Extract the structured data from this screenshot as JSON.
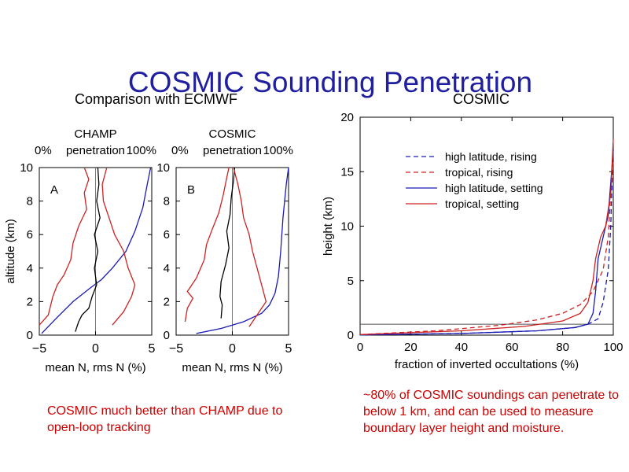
{
  "slide": {
    "title": "COSMIC Sounding Penetration",
    "subtitle_left": "Comparison with ECMWF",
    "subtitle_right": "COSMIC",
    "note_left": "COSMIC much better than CHAMP due to open-loop tracking",
    "note_right": "~80% of COSMIC soundings can penetrate to below 1 km, and can be used to measure boundary layer height and moisture."
  },
  "colors": {
    "title": "#1f1fa0",
    "blue": "#1a1ab4",
    "red": "#cc2222",
    "black": "#000000",
    "note": "#cc0000"
  },
  "chart_data": [
    {
      "type": "line",
      "panel_label": "A",
      "header": "CHAMP",
      "penetration_label": "penetration",
      "pct_left": "0%",
      "pct_right": "100%",
      "xlabel": "mean N, rms N (%)",
      "ylabel": "altitude (km)",
      "xlim": [
        -5,
        5
      ],
      "ylim": [
        0,
        10
      ],
      "xticks": [
        -5,
        0,
        5
      ],
      "xtick_labels": [
        "−5",
        "0",
        "5"
      ],
      "yticks": [
        0,
        2,
        4,
        6,
        8,
        10
      ],
      "series": [
        {
          "name": "penetration",
          "color": "blue",
          "points": [
            [
              -4.8,
              0.1
            ],
            [
              -3.5,
              1.0
            ],
            [
              -2,
              2.0
            ],
            [
              -0.5,
              2.8
            ],
            [
              0.5,
              3.3
            ],
            [
              1.5,
              4.0
            ],
            [
              2.7,
              5.0
            ],
            [
              3.5,
              6.2
            ],
            [
              4.2,
              7.6
            ],
            [
              4.6,
              9.0
            ],
            [
              4.9,
              10
            ]
          ]
        },
        {
          "name": "mean N",
          "color": "black",
          "points": [
            [
              -1.8,
              0.2
            ],
            [
              -1.5,
              0.8
            ],
            [
              -1.2,
              1.2
            ],
            [
              -0.6,
              1.6
            ],
            [
              -0.3,
              2.3
            ],
            [
              0.1,
              3.0
            ],
            [
              -0.1,
              4.0
            ],
            [
              0.2,
              5.0
            ],
            [
              -0.1,
              6.0
            ],
            [
              0.4,
              7.0
            ],
            [
              0.1,
              8.0
            ],
            [
              0.3,
              9.0
            ],
            [
              0.2,
              10
            ]
          ]
        },
        {
          "name": "rms N left",
          "color": "red",
          "points": [
            [
              -5,
              0.6
            ],
            [
              -4.2,
              1.2
            ],
            [
              -3.8,
              2.3
            ],
            [
              -3.4,
              3.0
            ],
            [
              -2.8,
              3.6
            ],
            [
              -2.2,
              4.5
            ],
            [
              -2.0,
              5.5
            ],
            [
              -1.5,
              6.5
            ],
            [
              -0.8,
              7.5
            ],
            [
              -1.0,
              8.5
            ],
            [
              -0.6,
              9.3
            ],
            [
              -1.0,
              10
            ]
          ]
        },
        {
          "name": "rms N right",
          "color": "red",
          "points": [
            [
              1.5,
              0.6
            ],
            [
              2.5,
              1.4
            ],
            [
              3.2,
              2.3
            ],
            [
              3.5,
              3.0
            ],
            [
              2.9,
              4.0
            ],
            [
              2.5,
              5.0
            ],
            [
              1.7,
              6.0
            ],
            [
              1.2,
              7.0
            ],
            [
              0.7,
              8.0
            ],
            [
              0.6,
              9.0
            ],
            [
              1.0,
              10
            ]
          ]
        }
      ]
    },
    {
      "type": "line",
      "panel_label": "B",
      "header": "COSMIC",
      "penetration_label": "penetration",
      "pct_left": "0%",
      "pct_right": "100%",
      "xlabel": "mean N, rms N (%)",
      "ylabel": "",
      "xlim": [
        -5,
        5
      ],
      "ylim": [
        0,
        10
      ],
      "xticks": [
        -5,
        0,
        5
      ],
      "xtick_labels": [
        "−5",
        "0",
        "5"
      ],
      "yticks": [
        0,
        2,
        4,
        6,
        8,
        10
      ],
      "series": [
        {
          "name": "penetration",
          "color": "blue",
          "points": [
            [
              -3.2,
              0.1
            ],
            [
              -1,
              0.4
            ],
            [
              1,
              0.8
            ],
            [
              2.6,
              1.3
            ],
            [
              3.3,
              1.8
            ],
            [
              3.8,
              2.5
            ],
            [
              4.1,
              3.5
            ],
            [
              4.3,
              5.0
            ],
            [
              4.5,
              7.0
            ],
            [
              4.8,
              9.0
            ],
            [
              5.0,
              10
            ]
          ]
        },
        {
          "name": "mean N",
          "color": "black",
          "points": [
            [
              -1.0,
              1.0
            ],
            [
              -0.9,
              1.8
            ],
            [
              -1.1,
              2.3
            ],
            [
              -1.0,
              3.2
            ],
            [
              -0.6,
              4.2
            ],
            [
              -0.3,
              5.2
            ],
            [
              -0.5,
              6.2
            ],
            [
              -0.2,
              7.2
            ],
            [
              -0.1,
              8.2
            ],
            [
              0.1,
              9.2
            ],
            [
              0.2,
              10
            ]
          ]
        },
        {
          "name": "rms N left",
          "color": "red",
          "points": [
            [
              -4.2,
              0.8
            ],
            [
              -4.0,
              1.6
            ],
            [
              -3.5,
              2.2
            ],
            [
              -4.0,
              2.6
            ],
            [
              -3.2,
              3.4
            ],
            [
              -2.5,
              4.5
            ],
            [
              -2.3,
              5.4
            ],
            [
              -1.8,
              6.3
            ],
            [
              -1.2,
              7.3
            ],
            [
              -0.8,
              8.4
            ],
            [
              -0.5,
              9.4
            ],
            [
              -0.3,
              10
            ]
          ]
        },
        {
          "name": "rms N right",
          "color": "red",
          "points": [
            [
              1.5,
              0.5
            ],
            [
              2.2,
              1.2
            ],
            [
              3.0,
              2.0
            ],
            [
              2.6,
              3.0
            ],
            [
              2.2,
              4.0
            ],
            [
              1.8,
              5.0
            ],
            [
              1.5,
              6.0
            ],
            [
              1.0,
              7.0
            ],
            [
              0.8,
              8.0
            ],
            [
              0.5,
              9.0
            ],
            [
              0.1,
              10
            ]
          ]
        }
      ]
    },
    {
      "type": "line",
      "xlabel": "fraction of inverted occultations (%)",
      "ylabel": "height (km)",
      "xlim": [
        0,
        100
      ],
      "ylim": [
        0,
        20
      ],
      "xticks": [
        0,
        20,
        40,
        60,
        80,
        100
      ],
      "yticks": [
        0,
        5,
        10,
        15,
        20
      ],
      "reference_line_y": 1,
      "legend": "top-left",
      "series": [
        {
          "name": "high latitude, rising",
          "color": "blue",
          "dash": true,
          "points": [
            [
              0,
              0.02
            ],
            [
              40,
              0.15
            ],
            [
              70,
              0.4
            ],
            [
              85,
              0.7
            ],
            [
              90,
              1.0
            ],
            [
              94,
              1.5
            ],
            [
              96,
              3
            ],
            [
              98,
              6
            ],
            [
              99,
              10
            ],
            [
              99.5,
              14
            ],
            [
              100,
              17
            ]
          ]
        },
        {
          "name": "tropical, rising",
          "color": "red",
          "dash": true,
          "points": [
            [
              0,
              0.05
            ],
            [
              30,
              0.4
            ],
            [
              55,
              0.9
            ],
            [
              70,
              1.4
            ],
            [
              80,
              2.0
            ],
            [
              87,
              2.8
            ],
            [
              92,
              4
            ],
            [
              96,
              6
            ],
            [
              98,
              9
            ],
            [
              99,
              13
            ],
            [
              100,
              16
            ]
          ]
        },
        {
          "name": "high latitude, setting",
          "color": "blue",
          "dash": false,
          "points": [
            [
              0,
              0.02
            ],
            [
              40,
              0.15
            ],
            [
              70,
              0.4
            ],
            [
              85,
              0.7
            ],
            [
              90,
              1.0
            ],
            [
              92,
              2
            ],
            [
              93,
              4
            ],
            [
              94,
              7
            ],
            [
              96,
              9
            ],
            [
              98,
              11
            ],
            [
              99,
              14
            ],
            [
              100,
              17
            ]
          ]
        },
        {
          "name": "tropical, setting",
          "color": "red",
          "dash": false,
          "points": [
            [
              0,
              0.05
            ],
            [
              40,
              0.4
            ],
            [
              65,
              0.8
            ],
            [
              80,
              1.3
            ],
            [
              87,
              2
            ],
            [
              90,
              3
            ],
            [
              92,
              5
            ],
            [
              93,
              7
            ],
            [
              95,
              9
            ],
            [
              97,
              10
            ],
            [
              99,
              13
            ],
            [
              100,
              18
            ]
          ]
        }
      ]
    }
  ]
}
